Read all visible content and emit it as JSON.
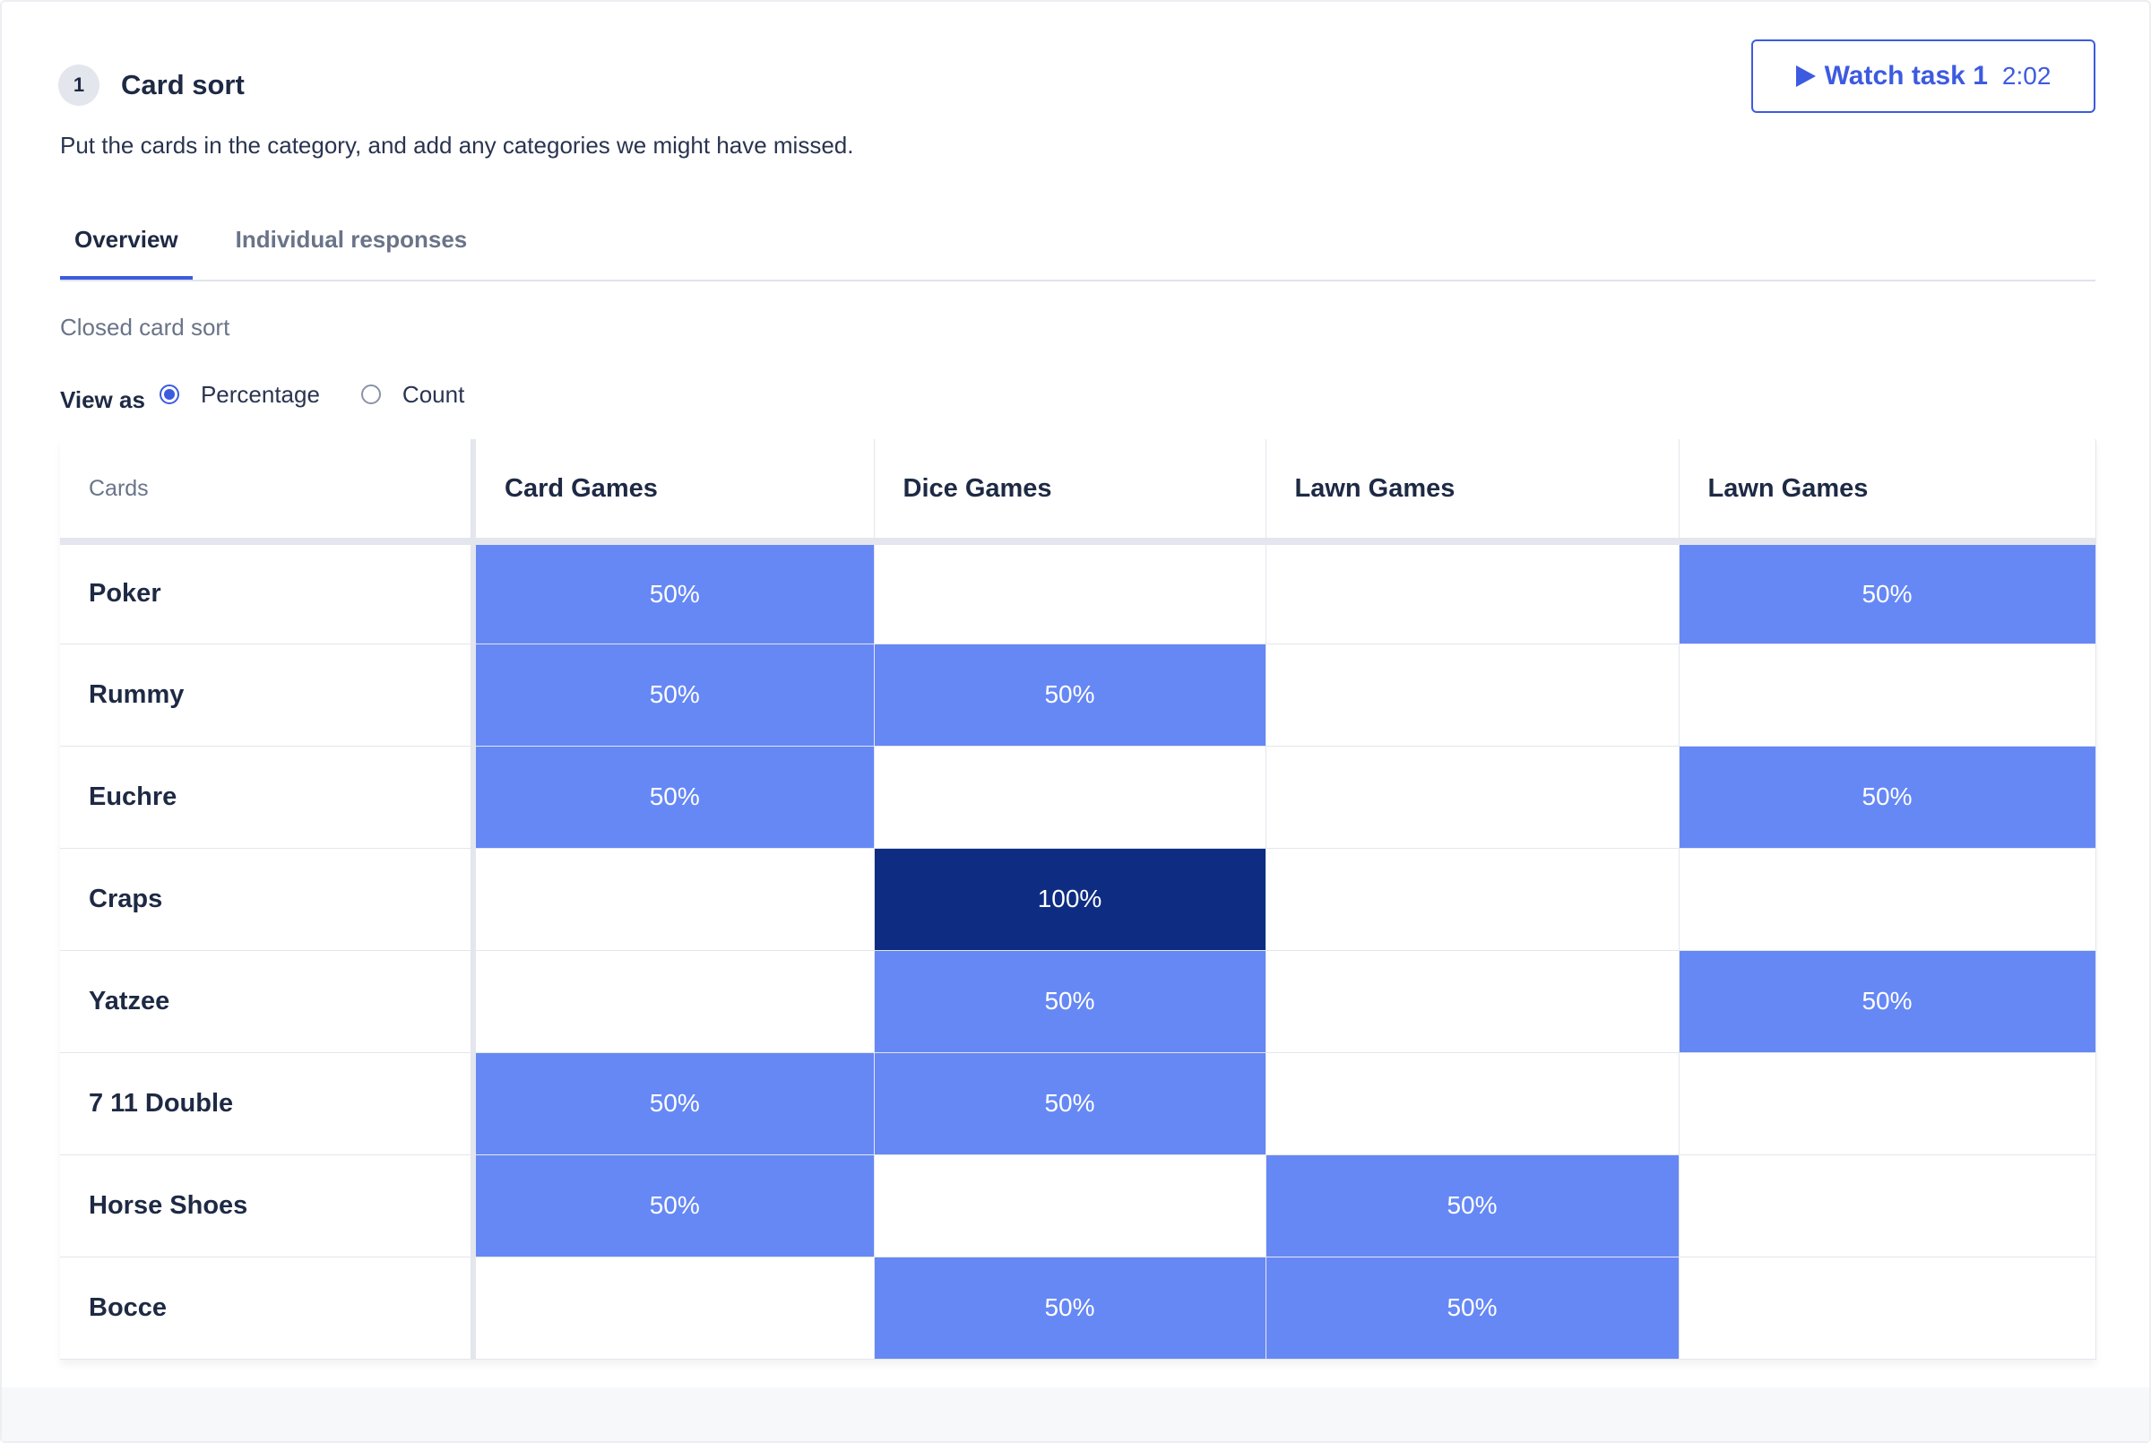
{
  "task": {
    "number": "1",
    "title": "Card sort",
    "description": "Put the cards in the category, and add any categories we might have missed.",
    "watch_label": "Watch task 1",
    "watch_time": "2:02"
  },
  "tabs": [
    {
      "label": "Overview",
      "active": true
    },
    {
      "label": "Individual responses",
      "active": false
    }
  ],
  "sort_type": "Closed card sort",
  "view_as": {
    "label": "View as",
    "options": [
      {
        "label": "Percentage",
        "checked": true
      },
      {
        "label": "Count",
        "checked": false
      }
    ]
  },
  "colors": {
    "accent": "#3d5be0",
    "cell_50": "#6688f5",
    "cell_100": "#0e2d82"
  },
  "matrix": {
    "cards_header": "Cards",
    "columns": [
      "Card Games",
      "Dice Games",
      "Lawn Games",
      "Lawn Games"
    ],
    "rows": [
      {
        "card": "Poker",
        "values": [
          "50%",
          "",
          "",
          "50%"
        ]
      },
      {
        "card": "Rummy",
        "values": [
          "50%",
          "50%",
          "",
          ""
        ]
      },
      {
        "card": "Euchre",
        "values": [
          "50%",
          "",
          "",
          "50%"
        ]
      },
      {
        "card": "Craps",
        "values": [
          "",
          "100%",
          "",
          ""
        ]
      },
      {
        "card": "Yatzee",
        "values": [
          "",
          "50%",
          "",
          "50%"
        ]
      },
      {
        "card": "7 11 Double",
        "values": [
          "50%",
          "50%",
          "",
          ""
        ]
      },
      {
        "card": "Horse Shoes",
        "values": [
          "50%",
          "",
          "50%",
          ""
        ]
      },
      {
        "card": "Bocce",
        "values": [
          "",
          "50%",
          "50%",
          ""
        ]
      }
    ]
  }
}
